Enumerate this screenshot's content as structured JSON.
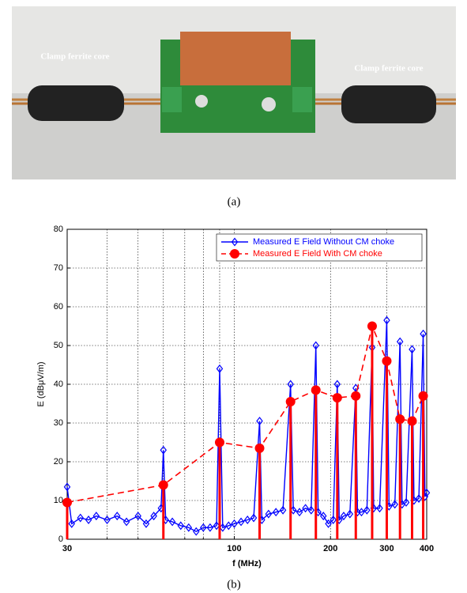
{
  "photo": {
    "labels": [
      "Clamp ferrite core",
      "Clamp ferrite core"
    ]
  },
  "captions": [
    "(a)",
    "(b)"
  ],
  "chart_data": {
    "type": "line",
    "xlabel": "f (MHz)",
    "ylabel": "E (dBμV/m)",
    "xscale": "log",
    "xlim": [
      30,
      400
    ],
    "xticks": [
      30,
      100,
      200,
      300,
      400
    ],
    "xminor": [
      40,
      50,
      60,
      70,
      80,
      90
    ],
    "ylim": [
      0,
      80
    ],
    "yticks": [
      0,
      10,
      20,
      30,
      40,
      50,
      60,
      70,
      80
    ],
    "grid": true,
    "legend": "upper right",
    "series": [
      {
        "name": "Measured E Field Without CM choke",
        "color": "#0000ff",
        "marker": "diamond",
        "dashed": false,
        "stems": false,
        "x": [
          30,
          31,
          33,
          35,
          37,
          40,
          43,
          46,
          50,
          53,
          56,
          59,
          60,
          61,
          64,
          68,
          72,
          76,
          80,
          84,
          88,
          90,
          92,
          96,
          100,
          105,
          110,
          115,
          120,
          122,
          128,
          135,
          142,
          150,
          153,
          160,
          167,
          174,
          180,
          183,
          190,
          197,
          204,
          210,
          213,
          220,
          230,
          240,
          243,
          250,
          260,
          270,
          273,
          285,
          300,
          305,
          318,
          330,
          335,
          345,
          360,
          365,
          378,
          390,
          395,
          400
        ],
        "values": [
          13.5,
          4,
          5.5,
          5,
          6,
          5,
          6,
          4.5,
          6,
          4,
          6,
          8,
          23,
          5,
          4.5,
          3.5,
          3,
          2,
          3,
          3,
          3.5,
          44,
          3,
          3.5,
          4,
          4.5,
          5,
          5.5,
          30.5,
          5,
          6.5,
          7,
          7.5,
          40,
          7.5,
          7,
          8,
          7.5,
          50,
          7,
          6,
          4,
          5,
          40,
          5,
          6,
          6.5,
          39,
          7,
          7,
          7.5,
          49.5,
          8,
          8,
          56.5,
          8.5,
          9,
          51,
          9,
          9.5,
          49,
          10,
          10.5,
          53,
          11,
          12
        ]
      },
      {
        "name": "Measured E Field With CM choke",
        "color": "#ff0000",
        "marker": "circle",
        "dashed": true,
        "stems": true,
        "x": [
          30,
          60,
          90,
          120,
          150,
          180,
          210,
          240,
          270,
          300,
          330,
          360,
          390
        ],
        "values": [
          9.5,
          14,
          25,
          23.5,
          35.5,
          38.5,
          36.5,
          37,
          55,
          46,
          31,
          30.5,
          37
        ]
      }
    ]
  }
}
